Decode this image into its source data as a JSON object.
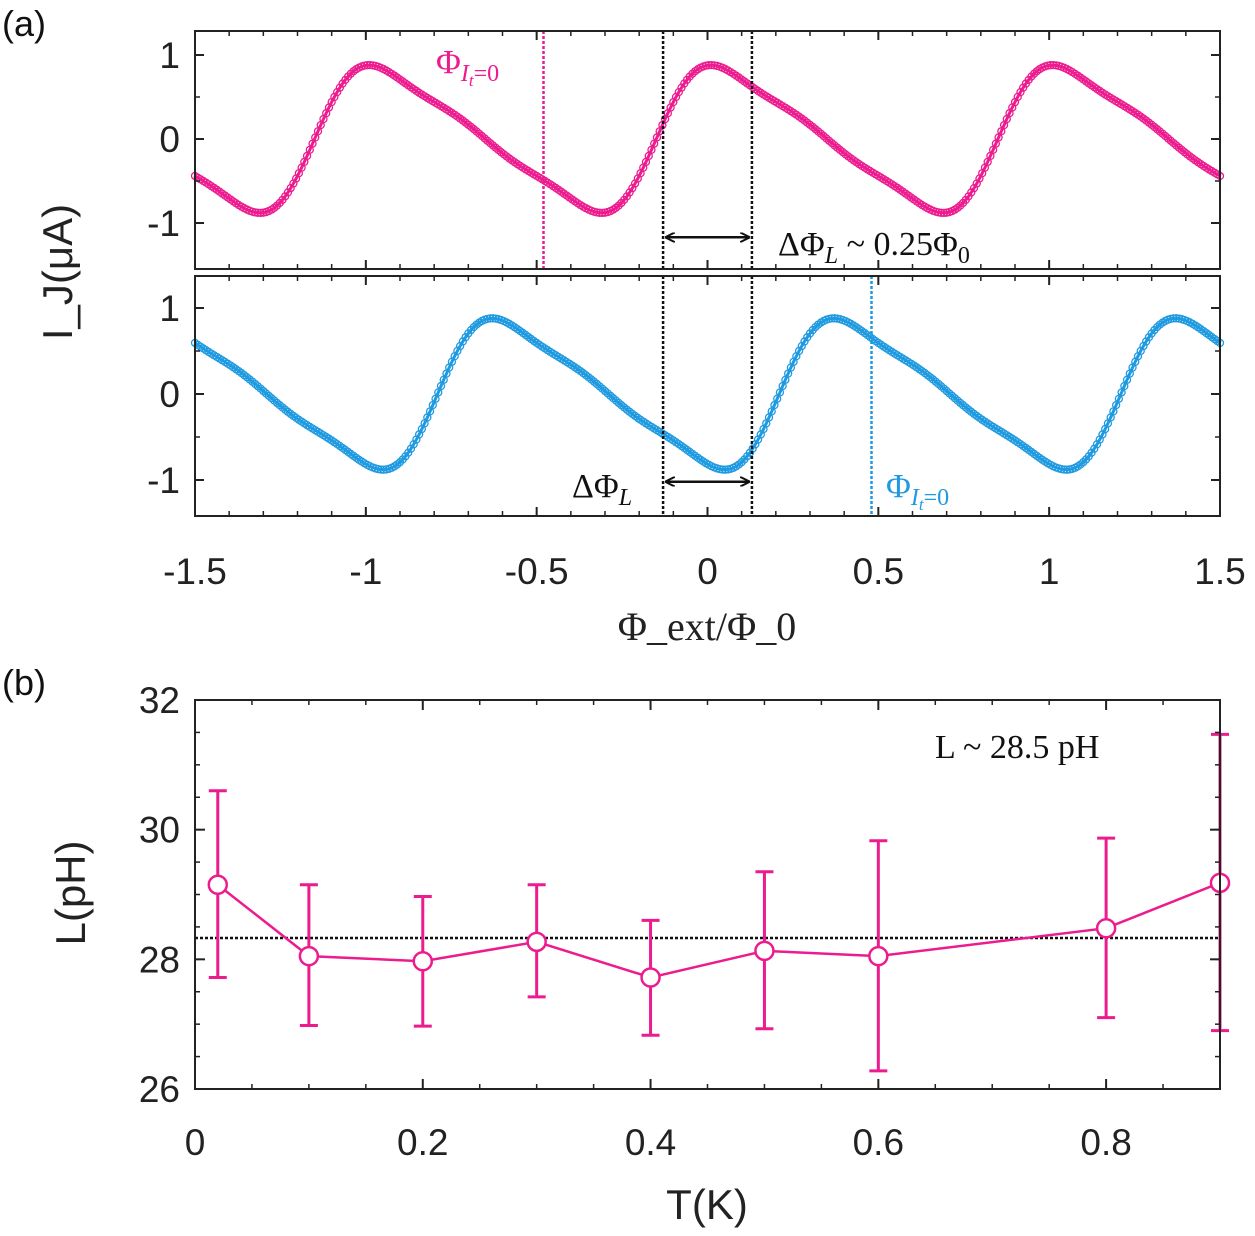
{
  "chart_data": [
    {
      "panel": "(a)",
      "type": "scatter",
      "xlabel": "Φ_ext/Φ_0",
      "ylabel": "I_J(μA)",
      "xlim": [
        -1.5,
        1.5
      ],
      "ylim": [
        -1.4,
        1.3
      ],
      "x_ticks": [
        "-1.5",
        "-1",
        "-0.5",
        "0",
        "0.5",
        "1",
        "1.5"
      ],
      "y_ticks": [
        "-1",
        "0",
        "1"
      ],
      "subplots": [
        {
          "name": "top",
          "color": "#ec1c8f",
          "model": {
            "amplitude": 0.88,
            "phase_offset": 0.15,
            "skew": 0.65
          },
          "marker_line": {
            "x": -0.48,
            "label_main": "Φ",
            "label_sub": "I",
            "label_subsub": "t",
            "label_tail": "=0"
          },
          "black_lines": [
            -0.13,
            0.13
          ],
          "arrow": {
            "from": -0.13,
            "to": 0.13,
            "y": -1.17
          },
          "annotation": {
            "text_main": "ΔΦ",
            "text_sub": "L",
            "text_tail": " ~ 0.25Φ",
            "text_tail_sub": "0"
          }
        },
        {
          "name": "bottom",
          "color": "#1f9ae0",
          "model": {
            "amplitude": 0.88,
            "phase_offset": -0.21,
            "skew": 0.65
          },
          "marker_line": {
            "x": 0.48,
            "label_main": "Φ",
            "label_sub": "I",
            "label_subsub": "t",
            "label_tail": "=0"
          },
          "black_lines": [
            -0.13,
            0.13
          ],
          "arrow": {
            "from": -0.13,
            "to": 0.13,
            "y": -1.02
          },
          "annotation": {
            "text_main": "ΔΦ",
            "text_sub": "L"
          }
        }
      ]
    },
    {
      "panel": "(b)",
      "type": "line",
      "xlabel": "T(K)",
      "ylabel": "L(pH)",
      "xlim": [
        0,
        0.9
      ],
      "ylim": [
        26,
        32
      ],
      "x_ticks": [
        "0",
        "0.2",
        "0.4",
        "0.6",
        "0.8"
      ],
      "y_ticks": [
        "26",
        "28",
        "30",
        "32"
      ],
      "color": "#ec1c8f",
      "x": [
        0.02,
        0.1,
        0.2,
        0.3,
        0.4,
        0.5,
        0.6,
        0.8,
        0.9
      ],
      "y": [
        29.15,
        28.05,
        27.97,
        28.27,
        27.72,
        28.13,
        28.05,
        28.48,
        29.18
      ],
      "yerr_low": [
        27.72,
        26.98,
        26.97,
        27.42,
        26.83,
        26.93,
        26.28,
        27.1,
        26.9
      ],
      "yerr_high": [
        30.6,
        29.15,
        28.97,
        29.15,
        28.6,
        29.35,
        29.83,
        29.87,
        31.47
      ],
      "reference_line": 28.33,
      "annotation": "L ~ 28.5 pH"
    }
  ]
}
